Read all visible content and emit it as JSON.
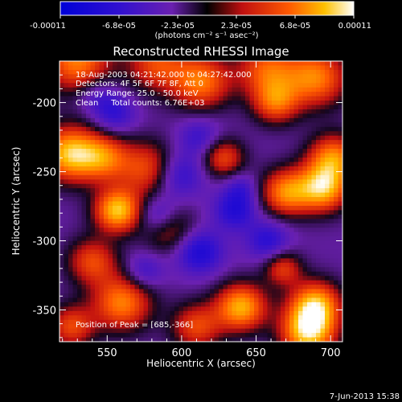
{
  "chart_data": {
    "type": "heatmap",
    "title": "Reconstructed RHESSI Image",
    "xlabel": "Heliocentric X (arcsec)",
    "ylabel": "Heliocentric Y (arcsec)",
    "xlim": [
      518,
      708
    ],
    "ylim": [
      -373,
      -170
    ],
    "xticks": [
      550,
      600,
      650,
      700
    ],
    "yticks": [
      -200,
      -250,
      -300,
      -350
    ],
    "colorbar": {
      "ticks": [
        "-0.00011",
        "-6.8e-05",
        "-2.3e-05",
        "2.3e-05",
        "6.8e-05",
        "0.00011"
      ],
      "unit_label": "(photons cm⁻² s⁻¹ asec⁻²)",
      "range": [
        -0.00011,
        0.00011
      ]
    },
    "annotations": [
      "18-Aug-2003 04:21:42.000 to 04:27:42.000",
      "Detectors: 4F 5F 6F 7F 8F, Att 0",
      "Energy Range: 25.0 - 50.0 keV",
      "Clean     Total counts: 6.76E+03"
    ],
    "peak_label": "Position of Peak = [685,-366]",
    "peak": {
      "x": 685,
      "y": -366
    },
    "blobs": [
      {
        "x": 530,
        "y": -170,
        "v": 0.75,
        "r": 16
      },
      {
        "x": 583,
        "y": -172,
        "v": 0.55,
        "r": 14
      },
      {
        "x": 613,
        "y": -185,
        "v": 0.72,
        "r": 14
      },
      {
        "x": 657,
        "y": -176,
        "v": 0.6,
        "r": 14
      },
      {
        "x": 690,
        "y": -182,
        "v": 0.75,
        "r": 15
      },
      {
        "x": 663,
        "y": -200,
        "v": 0.6,
        "r": 11
      },
      {
        "x": 525,
        "y": -237,
        "v": 0.95,
        "r": 14
      },
      {
        "x": 548,
        "y": -240,
        "v": 0.6,
        "r": 12
      },
      {
        "x": 578,
        "y": -248,
        "v": 0.6,
        "r": 14
      },
      {
        "x": 628,
        "y": -240,
        "v": 0.55,
        "r": 10
      },
      {
        "x": 702,
        "y": -240,
        "v": 0.75,
        "r": 12
      },
      {
        "x": 670,
        "y": -265,
        "v": 0.75,
        "r": 12
      },
      {
        "x": 695,
        "y": -262,
        "v": 0.9,
        "r": 12
      },
      {
        "x": 557,
        "y": -278,
        "v": 0.97,
        "r": 11
      },
      {
        "x": 590,
        "y": -290,
        "v": 0.55,
        "r": 12
      },
      {
        "x": 540,
        "y": -315,
        "v": 0.55,
        "r": 12
      },
      {
        "x": 560,
        "y": -345,
        "v": 0.75,
        "r": 14
      },
      {
        "x": 640,
        "y": -348,
        "v": 0.9,
        "r": 12
      },
      {
        "x": 668,
        "y": -320,
        "v": 0.5,
        "r": 9
      },
      {
        "x": 690,
        "y": -346,
        "v": 0.85,
        "r": 12
      },
      {
        "x": 685,
        "y": -366,
        "v": 1.0,
        "r": 13
      },
      {
        "x": 610,
        "y": -362,
        "v": 0.55,
        "r": 12
      },
      {
        "x": 526,
        "y": -362,
        "v": 0.55,
        "r": 11
      },
      {
        "x": 597,
        "y": -252,
        "v": -0.55,
        "r": 12
      },
      {
        "x": 612,
        "y": -225,
        "v": -0.4,
        "r": 10
      },
      {
        "x": 555,
        "y": -208,
        "v": -0.45,
        "r": 10
      },
      {
        "x": 543,
        "y": -195,
        "v": -0.35,
        "r": 9
      },
      {
        "x": 585,
        "y": -283,
        "v": -0.65,
        "r": 10
      },
      {
        "x": 612,
        "y": -308,
        "v": -0.6,
        "r": 11
      },
      {
        "x": 636,
        "y": -278,
        "v": -0.55,
        "r": 10
      },
      {
        "x": 658,
        "y": -300,
        "v": -0.5,
        "r": 10
      },
      {
        "x": 575,
        "y": -322,
        "v": -0.4,
        "r": 9
      },
      {
        "x": 640,
        "y": -262,
        "v": -0.35,
        "r": 8
      }
    ]
  },
  "footer": {
    "timestamp": "7-Jun-2013 15:38"
  }
}
